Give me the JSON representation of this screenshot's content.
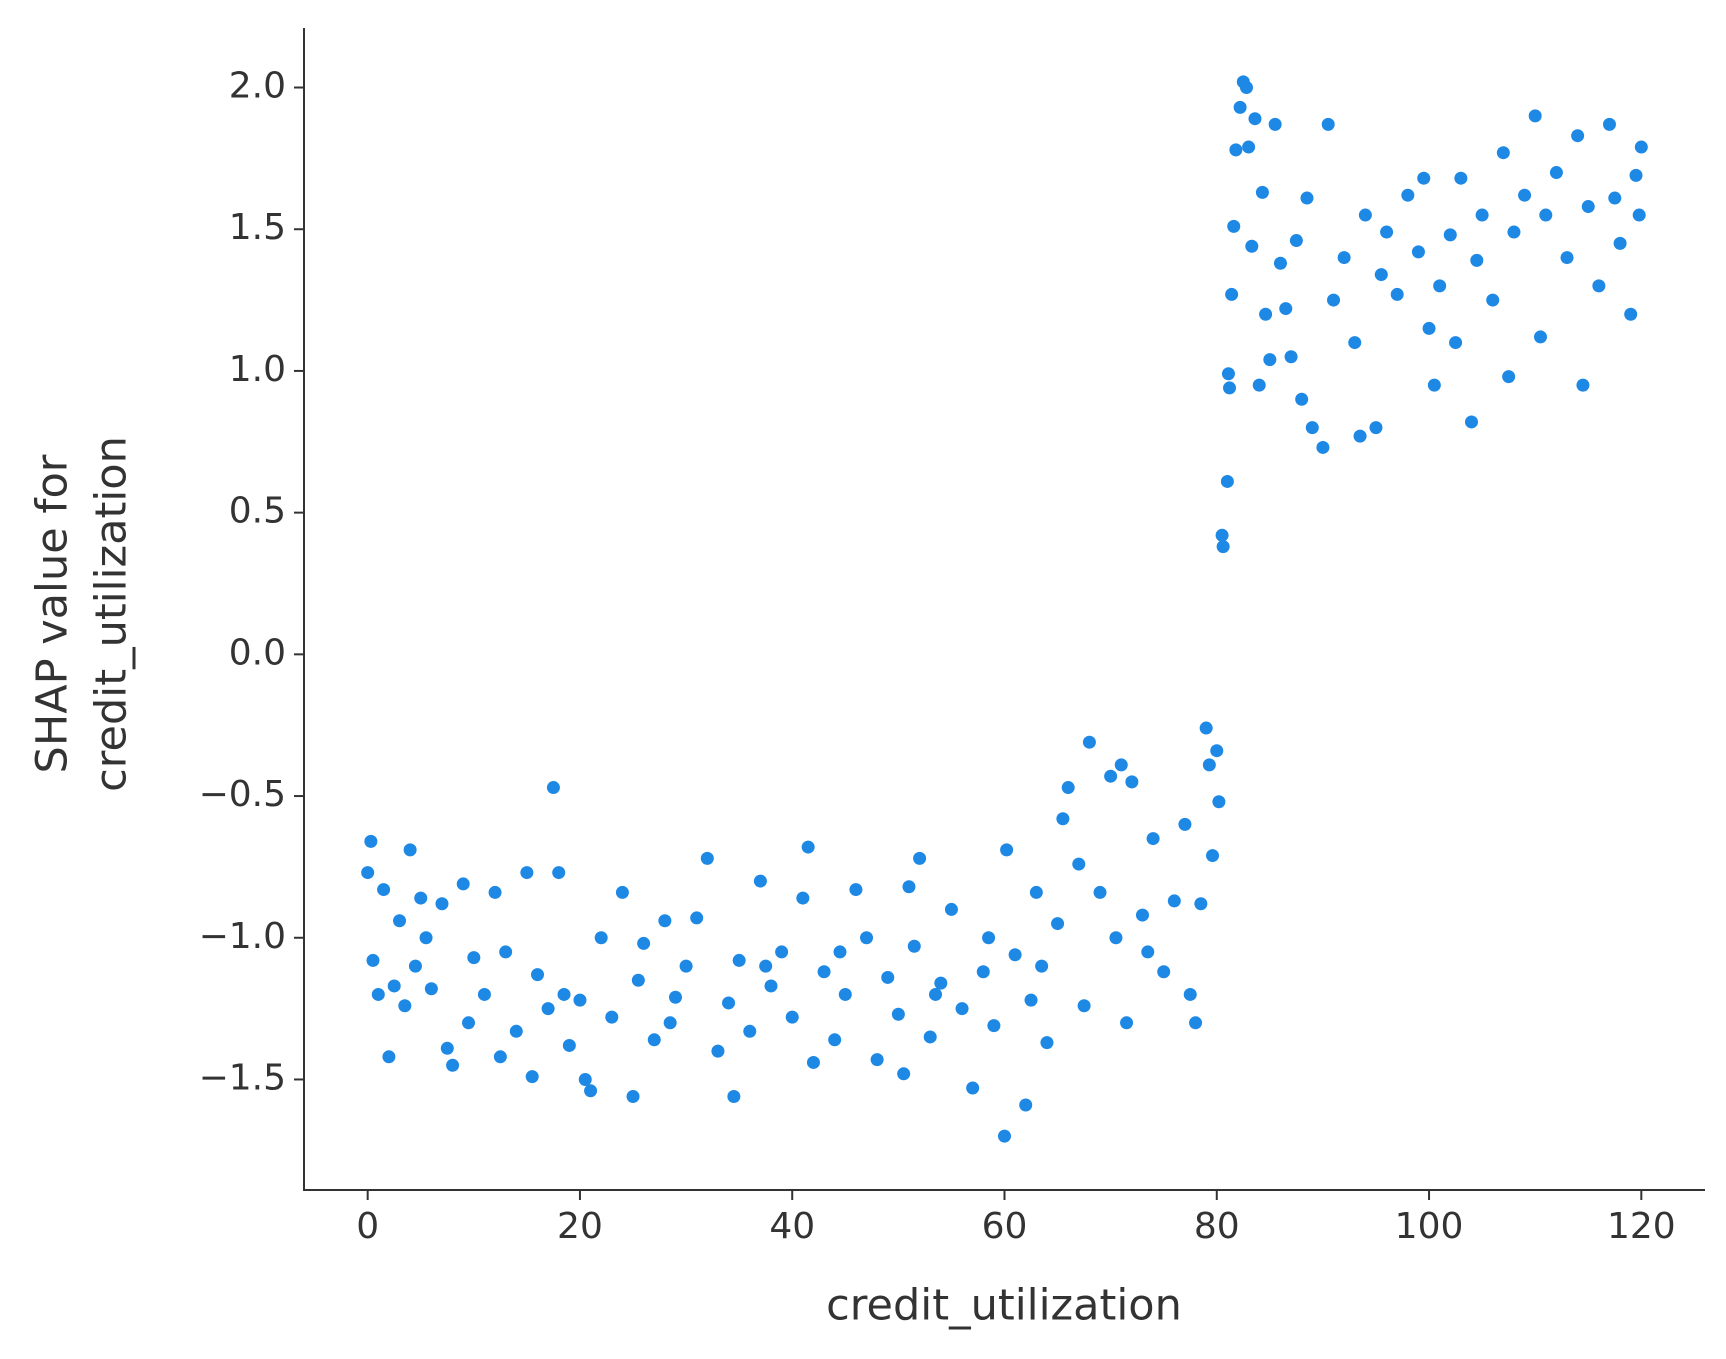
{
  "chart_data": {
    "type": "scatter",
    "xlabel": "credit_utilization",
    "ylabel": [
      "SHAP value for",
      "credit_utilization"
    ],
    "color": "#1e88e5",
    "xlim": [
      -6,
      126
    ],
    "ylim": [
      -1.89,
      2.21
    ],
    "xticks": [
      0,
      20,
      40,
      60,
      80,
      100,
      120
    ],
    "yticks": [
      {
        "value": -1.5,
        "label": "−1.5"
      },
      {
        "value": -1.0,
        "label": "−1.0"
      },
      {
        "value": -0.5,
        "label": "−0.5"
      },
      {
        "value": 0,
        "label": "0.0"
      },
      0.5,
      {
        "value": 1.0,
        "label": "1.0"
      },
      1.5,
      {
        "value": 2.0,
        "label": "2.0"
      }
    ],
    "x": [
      0,
      0.3,
      0.5,
      1,
      1.5,
      2,
      2.5,
      3,
      3.5,
      4,
      4.5,
      5,
      6,
      7,
      7.5,
      8,
      9,
      9.5,
      10,
      11,
      12,
      12.5,
      13,
      14,
      15,
      15.5,
      16,
      17,
      17.5,
      18,
      19,
      20,
      20.5,
      21,
      22,
      23,
      24,
      25,
      25.5,
      26,
      27,
      28,
      29,
      30,
      31,
      32,
      33,
      34,
      34.5,
      35,
      36,
      37,
      38,
      39,
      40,
      41,
      41.5,
      42,
      43,
      44,
      45,
      46,
      47,
      48,
      49,
      50,
      50.5,
      51,
      51.5,
      52,
      53,
      54,
      55,
      56,
      57,
      58,
      59,
      60,
      60.2,
      61,
      62,
      62.5,
      63,
      64,
      65,
      65.5,
      66,
      67,
      67.5,
      68,
      69,
      70,
      70.5,
      71,
      71.5,
      72,
      73,
      74,
      75,
      76,
      77,
      77.5,
      78,
      78.5,
      79,
      79.3,
      79.6,
      80,
      80.2,
      5.5,
      18.5,
      28.5,
      37.5,
      44.5,
      53.5,
      58.5,
      63.5,
      73.5,
      80.5,
      80.6,
      81,
      81.1,
      81.2,
      81.4,
      81.6,
      81.8,
      82.2,
      82.5,
      82.8,
      83,
      83.3,
      83.6,
      84,
      84.3,
      84.6,
      85,
      85.5,
      86,
      86.5,
      87,
      87.5,
      88,
      88.5,
      89,
      90,
      90.5,
      91,
      92,
      93,
      93.5,
      94,
      95,
      95.5,
      96,
      97,
      98,
      99,
      99.5,
      100,
      100.5,
      101,
      102,
      102.5,
      103,
      104,
      104.5,
      105,
      106,
      107,
      107.5,
      108,
      109,
      110,
      110.5,
      111,
      112,
      113,
      114,
      114.5,
      115,
      116,
      117,
      117.5,
      118,
      119,
      119.5,
      120,
      119.8
    ],
    "values": [
      -0.77,
      -0.66,
      -1.08,
      -1.2,
      -0.83,
      -1.42,
      -1.17,
      -0.94,
      -1.24,
      -0.69,
      -1.1,
      -0.86,
      -1.18,
      -0.88,
      -1.39,
      -1.45,
      -0.81,
      -1.3,
      -1.07,
      -1.2,
      -0.84,
      -1.42,
      -1.05,
      -1.33,
      -0.77,
      -1.49,
      -1.13,
      -1.25,
      -0.47,
      -0.77,
      -1.38,
      -1.22,
      -1.5,
      -1.54,
      -1.0,
      -1.28,
      -0.84,
      -1.56,
      -1.15,
      -1.02,
      -1.36,
      -0.94,
      -1.21,
      -1.1,
      -0.93,
      -0.72,
      -1.4,
      -1.23,
      -1.56,
      -1.08,
      -1.33,
      -0.8,
      -1.17,
      -1.05,
      -1.28,
      -0.86,
      -0.68,
      -1.44,
      -1.12,
      -1.36,
      -1.2,
      -0.83,
      -1.0,
      -1.43,
      -1.14,
      -1.27,
      -1.48,
      -0.82,
      -1.03,
      -0.72,
      -1.35,
      -1.16,
      -0.9,
      -1.25,
      -1.53,
      -1.12,
      -1.31,
      -1.7,
      -0.69,
      -1.06,
      -1.59,
      -1.22,
      -0.84,
      -1.37,
      -0.95,
      -0.58,
      -0.47,
      -0.74,
      -1.24,
      -0.31,
      -0.84,
      -0.43,
      -1.0,
      -0.39,
      -1.3,
      -0.45,
      -0.92,
      -0.65,
      -1.12,
      -0.87,
      -0.6,
      -1.2,
      -1.3,
      -0.88,
      -0.26,
      -0.39,
      -0.71,
      -0.34,
      -0.52,
      -1.0,
      -1.2,
      -1.3,
      -1.1,
      -1.05,
      -1.2,
      -1.0,
      -1.1,
      -1.05,
      0.42,
      0.38,
      0.61,
      0.99,
      0.94,
      1.27,
      1.51,
      1.78,
      1.93,
      2.02,
      2.0,
      1.79,
      1.44,
      1.89,
      0.95,
      1.63,
      1.2,
      1.04,
      1.87,
      1.38,
      1.22,
      1.05,
      1.46,
      0.9,
      1.61,
      0.8,
      0.73,
      1.87,
      1.25,
      1.4,
      1.1,
      0.77,
      1.55,
      0.8,
      1.34,
      1.49,
      1.27,
      1.62,
      1.42,
      1.68,
      1.15,
      0.95,
      1.3,
      1.48,
      1.1,
      1.68,
      0.82,
      1.39,
      1.55,
      1.25,
      1.77,
      0.98,
      1.49,
      1.62,
      1.9,
      1.12,
      1.55,
      1.7,
      1.4,
      1.83,
      0.95,
      1.58,
      1.3,
      1.87,
      1.61,
      1.45,
      1.2,
      1.69,
      1.79,
      1.55
    ]
  }
}
